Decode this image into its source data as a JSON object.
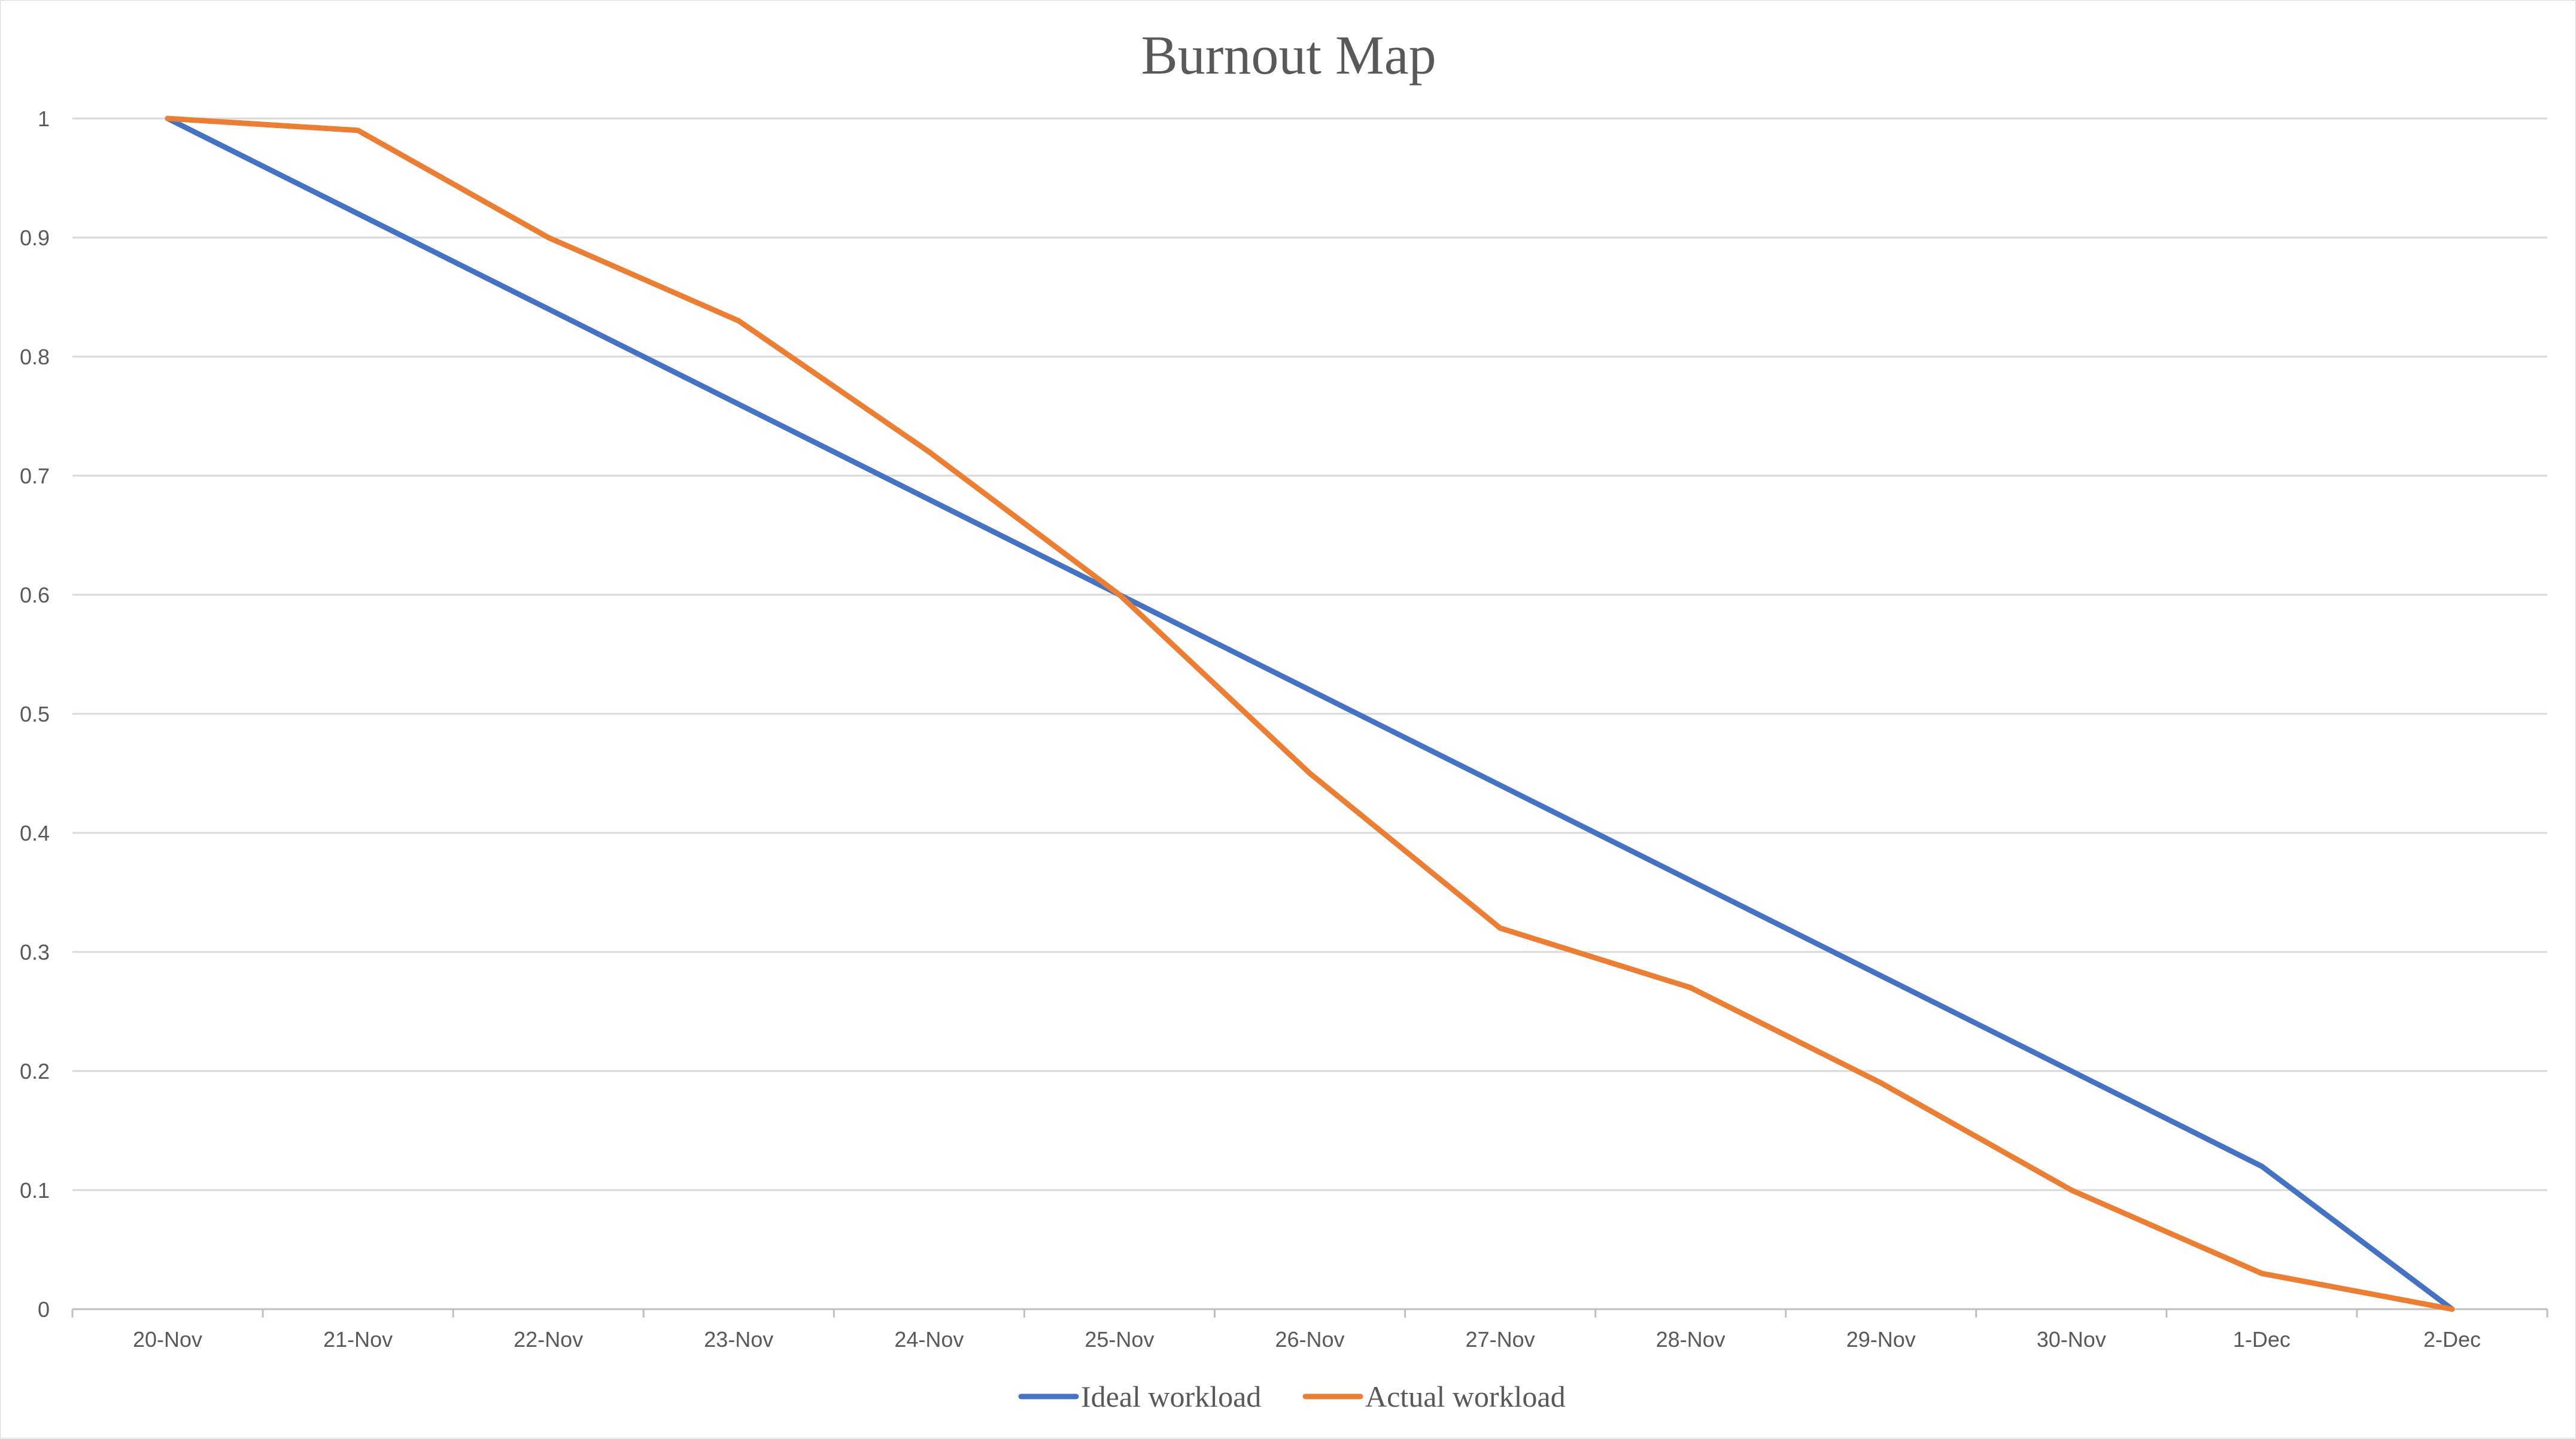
{
  "chart_data": {
    "type": "line",
    "title": "Burnout Map",
    "xlabel": "",
    "ylabel": "",
    "categories": [
      "20-Nov",
      "21-Nov",
      "22-Nov",
      "23-Nov",
      "24-Nov",
      "25-Nov",
      "26-Nov",
      "27-Nov",
      "28-Nov",
      "29-Nov",
      "30-Nov",
      "1-Dec",
      "2-Dec"
    ],
    "y_ticks": [
      "0",
      "0.1",
      "0.2",
      "0.3",
      "0.4",
      "0.5",
      "0.6",
      "0.7",
      "0.8",
      "0.9",
      "1"
    ],
    "ylim": [
      0,
      1
    ],
    "grid": true,
    "legend_position": "bottom",
    "series": [
      {
        "name": "Ideal workload",
        "color": "#4472c4",
        "values": [
          1.0,
          0.92,
          0.84,
          0.76,
          0.68,
          0.6,
          0.52,
          0.44,
          0.36,
          0.28,
          0.2,
          0.12,
          0.0
        ]
      },
      {
        "name": "Actual workload",
        "color": "#ed7d31",
        "values": [
          1.0,
          0.99,
          0.9,
          0.83,
          0.72,
          0.6,
          0.45,
          0.32,
          0.27,
          0.19,
          0.1,
          0.03,
          0.0
        ]
      }
    ]
  }
}
